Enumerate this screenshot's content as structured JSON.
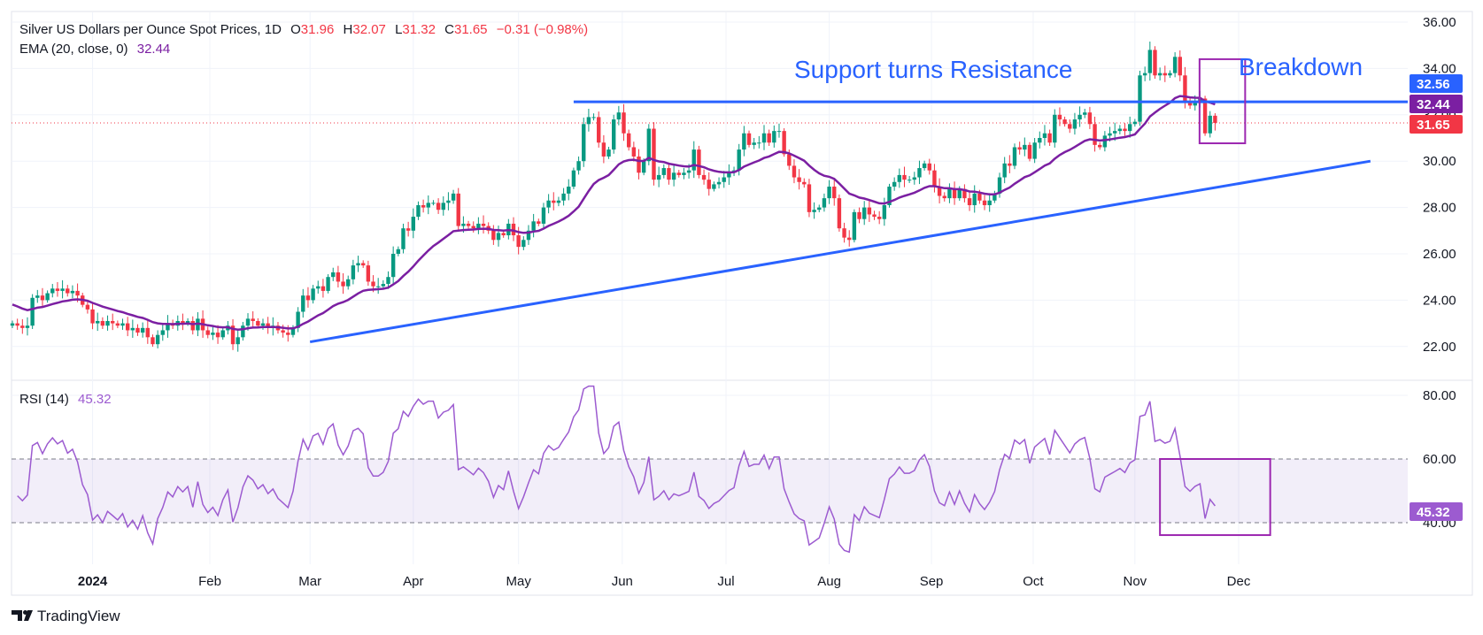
{
  "header": {
    "symbol_title": "Silver US Dollars per Ounce Spot Prices, 1D",
    "open_label": "O",
    "open": "31.96",
    "high_label": "H",
    "high": "32.07",
    "low_label": "L",
    "low": "31.32",
    "close_label": "C",
    "close": "31.65",
    "change": "−0.31 (−0.98%)",
    "ema_label": "EMA (20, close, 0)",
    "ema_value": "32.44",
    "rsi_label": "RSI (14)",
    "rsi_value": "45.32"
  },
  "annotations": {
    "resistance_text": "Support turns Resistance",
    "breakdown_text": "Breakdown"
  },
  "price_tags": {
    "resistance": "32.56",
    "ema": "32.44",
    "last": "31.65",
    "rsi": "45.32"
  },
  "brand": "TradingView",
  "colors": {
    "up": "#089981",
    "down": "#f23645",
    "drawing": "#2962ff",
    "ema": "#7b1fa2",
    "rsi": "#9c5bd0",
    "box": "#9c27b0"
  },
  "chart_data": {
    "type": "candlestick",
    "title": "Silver US Dollars per Ounce Spot Prices, 1D",
    "price_axis": {
      "ticks": [
        "36.00",
        "34.00",
        "32.00",
        "30.00",
        "28.00",
        "26.00",
        "24.00",
        "22.00"
      ],
      "ylim": [
        21.3,
        36.4
      ]
    },
    "rsi_axis": {
      "ticks": [
        "80.00",
        "60.00",
        "40.00"
      ],
      "band": [
        40,
        60
      ],
      "ylim": [
        26,
        85
      ]
    },
    "time_ticks": [
      {
        "label": "2024",
        "bar": 16,
        "bold": true
      },
      {
        "label": "Feb",
        "bar": 39.4
      },
      {
        "label": "Mar",
        "bar": 59.4
      },
      {
        "label": "Apr",
        "bar": 80
      },
      {
        "label": "May",
        "bar": 101
      },
      {
        "label": "Jun",
        "bar": 121.7
      },
      {
        "label": "Jul",
        "bar": 142.4
      },
      {
        "label": "Aug",
        "bar": 163
      },
      {
        "label": "Sep",
        "bar": 183.4
      },
      {
        "label": "Oct",
        "bar": 203.7
      },
      {
        "label": "Nov",
        "bar": 224
      },
      {
        "label": "Dec",
        "bar": 244.7
      }
    ],
    "last_bar": {
      "open": 31.96,
      "high": 32.07,
      "low": 31.32,
      "close": 31.65
    },
    "close": [
      23.0,
      22.9,
      22.8,
      22.9,
      24.1,
      24.2,
      24.0,
      24.3,
      24.5,
      24.4,
      24.5,
      24.3,
      24.4,
      24.2,
      23.8,
      23.6,
      23.0,
      23.1,
      22.9,
      23.1,
      23.0,
      22.9,
      23.0,
      22.7,
      22.8,
      22.6,
      22.8,
      22.4,
      22.1,
      22.5,
      22.7,
      23.0,
      22.9,
      23.1,
      23.0,
      23.1,
      22.7,
      23.2,
      22.7,
      22.5,
      22.6,
      22.4,
      22.7,
      22.9,
      22.1,
      22.4,
      22.9,
      23.2,
      23.1,
      22.9,
      23.0,
      22.8,
      22.9,
      22.7,
      22.6,
      22.5,
      22.8,
      23.5,
      24.2,
      24.0,
      24.5,
      24.6,
      24.4,
      25.0,
      25.2,
      24.8,
      24.6,
      24.9,
      25.5,
      25.6,
      25.5,
      24.8,
      24.6,
      24.6,
      24.7,
      25.0,
      26.0,
      26.2,
      27.1,
      27.0,
      27.6,
      28.1,
      28.0,
      28.2,
      28.2,
      27.9,
      28.2,
      28.3,
      28.6,
      27.2,
      27.3,
      27.2,
      27.1,
      27.3,
      27.2,
      27.0,
      26.6,
      26.9,
      26.8,
      27.3,
      26.8,
      26.3,
      26.6,
      27.0,
      27.4,
      27.3,
      28.0,
      28.3,
      28.2,
      28.3,
      28.6,
      28.9,
      29.6,
      30.0,
      31.6,
      31.9,
      31.9,
      30.8,
      30.2,
      30.5,
      31.8,
      32.1,
      31.2,
      30.6,
      30.2,
      29.5,
      30.0,
      31.4,
      29.2,
      29.4,
      29.7,
      29.2,
      29.5,
      29.4,
      29.5,
      29.6,
      30.5,
      29.4,
      29.2,
      28.8,
      29.0,
      29.1,
      29.3,
      29.5,
      29.6,
      30.5,
      31.2,
      30.7,
      30.8,
      30.8,
      31.2,
      30.8,
      31.3,
      31.3,
      30.3,
      29.8,
      29.3,
      29.1,
      29.0,
      27.8,
      27.9,
      28.0,
      28.4,
      28.9,
      28.4,
      27.1,
      26.7,
      26.6,
      27.8,
      27.5,
      28.0,
      27.7,
      27.6,
      27.5,
      28.1,
      28.9,
      29.1,
      29.4,
      29.2,
      29.2,
      29.3,
      29.7,
      29.9,
      29.6,
      28.9,
      28.5,
      28.4,
      28.8,
      28.4,
      28.8,
      28.4,
      28.1,
      28.6,
      28.3,
      28.1,
      28.3,
      28.6,
      29.3,
      29.9,
      29.8,
      30.6,
      30.5,
      30.7,
      30.1,
      30.8,
      31.0,
      31.2,
      30.8,
      32.0,
      31.8,
      31.6,
      31.4,
      31.8,
      32.0,
      32.1,
      31.6,
      30.7,
      30.6,
      31.1,
      31.2,
      31.3,
      31.4,
      31.3,
      31.6,
      31.7,
      33.7,
      33.8,
      34.8,
      33.7,
      33.8,
      33.7,
      33.8,
      34.5,
      33.7,
      32.6,
      32.4,
      32.6,
      32.7,
      31.2,
      31.96,
      31.65
    ],
    "ema_period": 20,
    "rsi_period": 14,
    "drawings": {
      "resistance_line": {
        "price": 32.56,
        "from_bar": 112
      },
      "trend_line": {
        "from": {
          "bar": 59.4,
          "price": 22.2
        },
        "to": {
          "bar": 271,
          "price": 30.0
        }
      },
      "price_box": {
        "from_bar": 236.9,
        "to_bar": 246,
        "top": 34.4,
        "bottom": 30.77
      },
      "rsi_box": {
        "from_bar": 229,
        "to_bar": 251,
        "top": 60,
        "bottom": 36.1
      }
    }
  }
}
